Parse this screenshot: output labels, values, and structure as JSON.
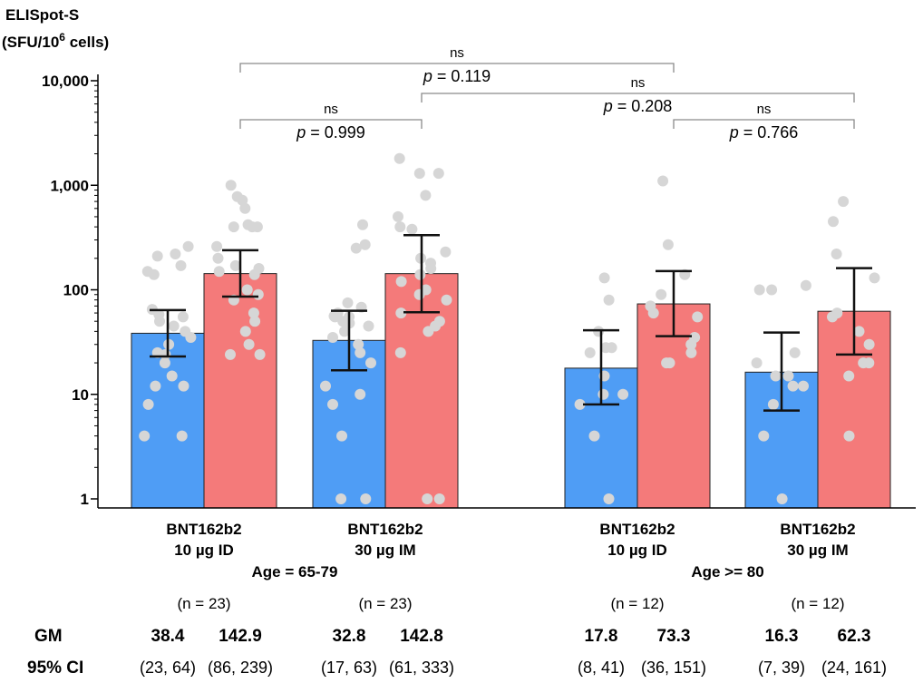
{
  "chart_data": {
    "type": "bar",
    "ylabel_line1": "ELISpot-S",
    "ylabel_line2_base": "(SFU/10",
    "ylabel_line2_sup": "6",
    "ylabel_line2_end": " cells)",
    "yscale": "log",
    "ylim": [
      0.9,
      10000
    ],
    "ticks": [
      {
        "value": 1,
        "label": "1"
      },
      {
        "value": 10,
        "label": "10"
      },
      {
        "value": 100,
        "label": "100"
      },
      {
        "value": 1000,
        "label": "1,000"
      },
      {
        "value": 10000,
        "label": "10,000"
      }
    ],
    "colors": {
      "blue": "#4f9df5",
      "red": "#f47a7a",
      "dot": "#d6d6d6"
    },
    "groups": [
      {
        "label_line1": "BNT162b2",
        "label_line2": "10 µg ID",
        "n": "(n = 23)",
        "bars": [
          {
            "color": "blue",
            "gm": 38.4,
            "gm_label": "38.4",
            "ci": [
              23,
              64
            ],
            "ci_label": "(23, 64)",
            "points": [
              220,
              260,
              210,
              150,
              140,
              170,
              65,
              58,
              55,
              50,
              45,
              40,
              35,
              30,
              25,
              24,
              20,
              15,
              12,
              12,
              8,
              4,
              4
            ]
          },
          {
            "color": "red",
            "gm": 142.9,
            "gm_label": "142.9",
            "ci": [
              86,
              239
            ],
            "ci_label": "(86, 239)",
            "points": [
              1000,
              780,
              720,
              600,
              420,
              400,
              400,
              400,
              260,
              200,
              170,
              160,
              150,
              140,
              100,
              90,
              80,
              60,
              50,
              40,
              30,
              24,
              24
            ]
          }
        ]
      },
      {
        "label_line1": "BNT162b2",
        "label_line2": "30 µg IM",
        "n": "(n = 23)",
        "bars": [
          {
            "color": "blue",
            "gm": 32.8,
            "gm_label": "32.8",
            "ci": [
              17,
              63
            ],
            "ci_label": "(17, 63)",
            "points": [
              420,
              270,
              250,
              75,
              68,
              60,
              56,
              55,
              55,
              50,
              48,
              45,
              40,
              35,
              30,
              25,
              20,
              12,
              10,
              8,
              4,
              1,
              1
            ]
          },
          {
            "color": "red",
            "gm": 142.8,
            "gm_label": "142.8",
            "ci": [
              61,
              333
            ],
            "ci_label": "(61, 333)",
            "points": [
              1800,
              1300,
              1300,
              800,
              500,
              400,
              380,
              230,
              200,
              180,
              160,
              140,
              120,
              100,
              90,
              80,
              60,
              50,
              45,
              40,
              25,
              1,
              1
            ]
          }
        ]
      },
      {
        "label_line1": "BNT162b2",
        "label_line2": "10 µg ID",
        "n": "(n = 12)",
        "bars": [
          {
            "color": "blue",
            "gm": 17.8,
            "gm_label": "17.8",
            "ci": [
              8,
              41
            ],
            "ci_label": "(8, 41)",
            "points": [
              130,
              80,
              40,
              28,
              28,
              15,
              10,
              8,
              4,
              1,
              10,
              25
            ]
          },
          {
            "color": "red",
            "gm": 73.3,
            "gm_label": "73.3",
            "ci": [
              36,
              151
            ],
            "ci_label": "(36, 151)",
            "points": [
              1100,
              270,
              140,
              90,
              70,
              60,
              55,
              35,
              30,
              25,
              20,
              20
            ]
          }
        ]
      },
      {
        "label_line1": "BNT162b2",
        "label_line2": "30 µg IM",
        "n": "(n = 12)",
        "bars": [
          {
            "color": "blue",
            "gm": 16.3,
            "gm_label": "16.3",
            "ci": [
              7,
              39
            ],
            "ci_label": "(7, 39)",
            "points": [
              100,
              110,
              100,
              25,
              20,
              15,
              15,
              12,
              12,
              8,
              4,
              1
            ]
          },
          {
            "color": "red",
            "gm": 62.3,
            "gm_label": "62.3",
            "ci": [
              24,
              161
            ],
            "ci_label": "(24, 161)",
            "points": [
              700,
              450,
              220,
              130,
              60,
              55,
              40,
              30,
              20,
              20,
              15,
              4
            ]
          }
        ]
      }
    ],
    "age_labels": [
      "Age = 65-79",
      "Age >= 80"
    ],
    "row_labels": {
      "gm": "GM",
      "ci": "95% CI"
    },
    "comparisons": [
      {
        "from": [
          0,
          1
        ],
        "to": [
          1,
          1
        ],
        "level": 2,
        "ns": "ns",
        "p_label": "p",
        "p_value": " = 0.999"
      },
      {
        "from": [
          2,
          1
        ],
        "to": [
          3,
          1
        ],
        "level": 2,
        "ns": "ns",
        "p_label": "p",
        "p_value": " = 0.766"
      },
      {
        "from": [
          1,
          1
        ],
        "to": [
          3,
          1
        ],
        "level": 1,
        "ns": "ns",
        "p_label": "p",
        "p_value": " = 0.208"
      },
      {
        "from": [
          0,
          1
        ],
        "to": [
          2,
          1
        ],
        "level": 0,
        "ns": "ns",
        "p_label": "p",
        "p_value": " = 0.119"
      }
    ]
  }
}
